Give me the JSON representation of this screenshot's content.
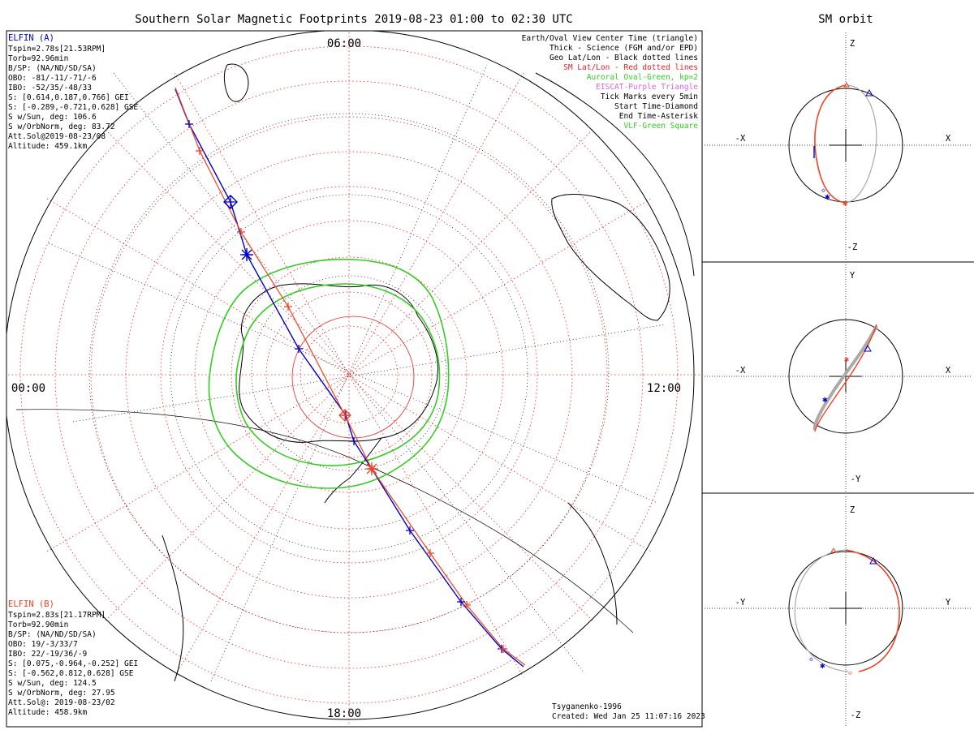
{
  "title": "Southern Solar Magnetic Footprints 2019-08-23 01:00 to 02:30 UTC",
  "orbit_title": "SM orbit",
  "colors": {
    "elfin_a": "#0000cc",
    "elfin_b": "#ee4422",
    "auroral_oval": "#33cc22",
    "eiscat": "#dd66dd",
    "sm_grid": "#ee2222",
    "geo_grid": "#000000",
    "orbit_circle": "#000000",
    "orbit_track_gray": "#aaaaaa"
  },
  "map": {
    "mlt_labels": {
      "top": "06:00",
      "left": "00:00",
      "right": "12:00",
      "bottom": "18:00"
    }
  },
  "elfin_a": {
    "name": "ELFIN (A)",
    "lines": [
      "Tspin=2.78s[21.53RPM]",
      "Torb=92.96min",
      "B/SP: (NA/ND/SD/SA)",
      "OBO: -81/-11/-71/-6",
      "IBO: -52/35/-48/33",
      "S: [0.614,0.187,0.766] GEI",
      "S: [-0.289,-0.721,0.628] GSE",
      "S w/Sun, deg: 106.6",
      "S w/OrbNorm, deg: 83.72",
      "Att.Sol@2019-08-23/08",
      "Altitude: 459.1km"
    ]
  },
  "elfin_b": {
    "name": "ELFIN (B)",
    "lines": [
      "Tspin=2.83s[21.17RPM]",
      "Torb=92.90min",
      "B/SP: (NA/ND/SD/SA)",
      "OBO: 19/-3/33/7",
      "IBO: 22/-19/36/-9",
      "S: [0.075,-0.964,-0.252] GEI",
      "S: [-0.562,0.812,0.628] GSE",
      "S w/Sun, deg: 124.5",
      "S w/OrbNorm, deg: 27.95",
      "Att.Sol@: 2019-08-23/02",
      "Altitude: 458.9km"
    ]
  },
  "legend": [
    {
      "text": "Earth/Oval View Center Time (triangle)",
      "color": "#000000"
    },
    {
      "text": "Thick - Science (FGM and/or EPD)",
      "color": "#000000"
    },
    {
      "text": "Geo Lat/Lon - Black dotted lines",
      "color": "#000000"
    },
    {
      "text": "SM Lat/Lon - Red dotted lines",
      "color": "#ee2222"
    },
    {
      "text": "Auroral Oval-Green, kp=2",
      "color": "#33cc22"
    },
    {
      "text": "EISCAT-Purple Triangle",
      "color": "#dd66dd"
    },
    {
      "text": "Tick Marks every 5min",
      "color": "#000000"
    },
    {
      "text": "Start Time-Diamond",
      "color": "#000000"
    },
    {
      "text": "End Time-Asterisk",
      "color": "#000000"
    },
    {
      "text": "VLF-Green Square",
      "color": "#33cc22"
    }
  ],
  "footer": {
    "model": "Tsyganenko-1996",
    "created": "Created: Wed Jan 25 11:07:16 2023"
  },
  "orbit_panels": [
    {
      "left": "-X",
      "right": "X",
      "top": "Z",
      "bottom": "-Z"
    },
    {
      "left": "-X",
      "right": "X",
      "top": "Y",
      "bottom": "-Y"
    },
    {
      "left": "-Y",
      "right": "Y",
      "top": "Z",
      "bottom": "-Z"
    }
  ],
  "chart_data": {
    "type": "scatter",
    "projection": "southern polar (solar magnetic)",
    "mlt_axis_labels": [
      "06:00",
      "00:00",
      "12:00",
      "18:00"
    ],
    "series": [
      {
        "name": "ELFIN (A)",
        "color": "#0000cc",
        "track": [
          [
            216,
            110
          ],
          [
            233,
            153
          ],
          [
            284,
            249
          ],
          [
            304,
            314
          ],
          [
            368,
            430
          ],
          [
            426,
            512
          ],
          [
            436,
            544
          ],
          [
            458,
            578
          ],
          [
            505,
            654
          ],
          [
            568,
            742
          ],
          [
            618,
            800
          ],
          [
            645,
            822
          ]
        ],
        "start": [
          284,
          249
        ],
        "end": [
          304,
          314
        ]
      },
      {
        "name": "ELFIN (B)",
        "color": "#ee4422",
        "track": [
          [
            216,
            108
          ],
          [
            246,
            186
          ],
          [
            297,
            286
          ],
          [
            355,
            378
          ],
          [
            425,
            512
          ],
          [
            458,
            578
          ],
          [
            530,
            682
          ],
          [
            575,
            746
          ],
          [
            620,
            800
          ],
          [
            647,
            820
          ]
        ],
        "start": [
          425,
          512
        ],
        "end": [
          458,
          578
        ]
      }
    ]
  }
}
